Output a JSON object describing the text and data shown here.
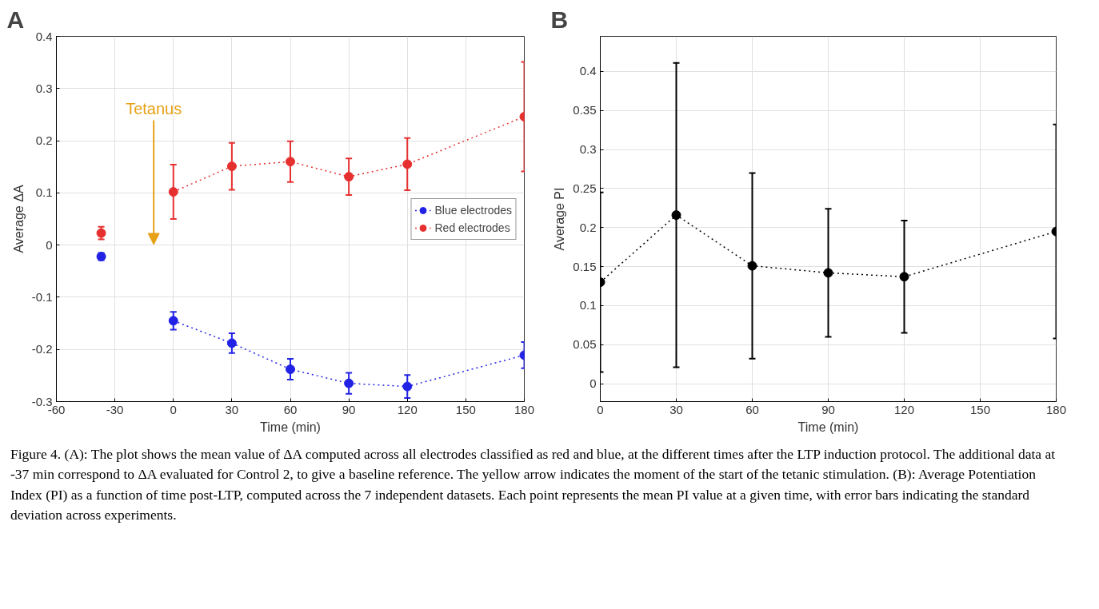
{
  "chart_data": [
    {
      "type": "line",
      "title": "A",
      "xlabel": "Time (min)",
      "ylabel": "Average ΔA",
      "xlim": [
        -60,
        180
      ],
      "ylim": [
        -0.3,
        0.4
      ],
      "xticks": [
        -60,
        -30,
        0,
        30,
        60,
        90,
        120,
        150,
        180
      ],
      "yticks": [
        -0.3,
        -0.2,
        -0.1,
        0,
        0.1,
        0.2,
        0.3,
        0.4
      ],
      "grid": true,
      "legend": "right",
      "marker": "circle",
      "line_style": "dotted",
      "series": [
        {
          "name": "Blue electrodes",
          "color": "#2222e6",
          "x": [
            0,
            30,
            60,
            90,
            120,
            180
          ],
          "values": [
            -0.145,
            -0.188,
            -0.238,
            -0.265,
            -0.271,
            -0.211
          ],
          "errors": [
            0.017,
            0.019,
            0.02,
            0.02,
            0.022,
            0.025
          ]
        },
        {
          "name": "Red electrodes",
          "color": "#e63030",
          "x": [
            0,
            30,
            60,
            90,
            120,
            180
          ],
          "values": [
            0.102,
            0.151,
            0.16,
            0.131,
            0.155,
            0.246
          ],
          "errors": [
            0.052,
            0.045,
            0.039,
            0.035,
            0.05,
            0.105
          ]
        },
        {
          "type": "scatter",
          "color": "#2222e6",
          "x": [
            -37
          ],
          "values": [
            -0.022
          ],
          "errors": [
            0.007
          ]
        },
        {
          "type": "scatter",
          "color": "#e63030",
          "x": [
            -37
          ],
          "values": [
            0.023
          ],
          "errors": [
            0.012
          ]
        }
      ],
      "annotations": [
        "Tetanus",
        "Figure 4. (A): The plot shows the mean value of ΔA computed across all electrodes classified as red and blue, at the different times after the LTP induction protocol. The additional data at -37 min correspond to ΔA evaluated for Control 2, to give a baseline reference. The yellow arrow indicates the moment of the start of the tetanic stimulation. (B): Average Potentiation Index (PI) as a function of time post-LTP, computed across the 7 independent datasets. Each point represents the mean PI value at a given time, with error bars indicating the standard deviation across experiments."
      ]
    },
    {
      "type": "line",
      "title": "B",
      "xlabel": "Time (min)",
      "ylabel": "Average PI",
      "xlim": [
        0,
        180
      ],
      "ylim": [
        -0.023,
        0.445
      ],
      "xticks": [
        0,
        30,
        60,
        90,
        120,
        150,
        180
      ],
      "yticks": [
        0,
        0.05,
        0.1,
        0.15,
        0.2,
        0.25,
        0.3,
        0.35,
        0.4
      ],
      "grid": true,
      "marker": "circle",
      "line_style": "dotted",
      "series": [
        {
          "color": "#000000",
          "x": [
            0,
            30,
            60,
            90,
            120,
            180
          ],
          "values": [
            0.13,
            0.216,
            0.151,
            0.142,
            0.137,
            0.195
          ],
          "errors": [
            0.115,
            0.195,
            0.119,
            0.082,
            0.072,
            0.137
          ]
        }
      ]
    }
  ]
}
